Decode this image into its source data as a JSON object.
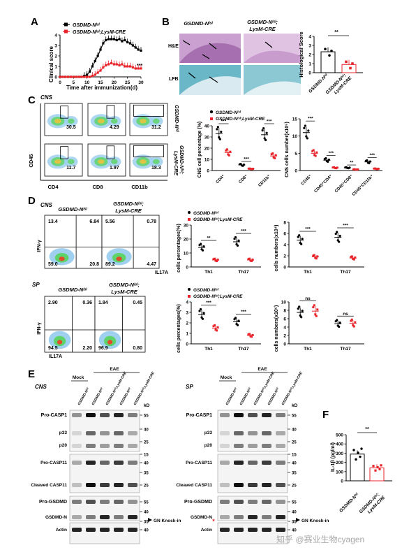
{
  "panels": {
    "A": {
      "letter": "A",
      "legend": [
        "GSDMD-Nˡˢˡ",
        "GSDMD-Nˡˢˡ;LysM-CRE"
      ],
      "ylabel": "Clinical score",
      "xlabel": "Time after immunization(d)",
      "sig": "***",
      "yticks": [
        "0",
        "1",
        "2",
        "3",
        "4"
      ],
      "xticks": [
        "0",
        "5",
        "10",
        "15",
        "20",
        "25",
        "30"
      ]
    },
    "B": {
      "letter": "B",
      "col1": "GSDMD-Nˡˢˡ",
      "col2": "GSDMD-Nˡˢˡ;",
      "col2b": "LysM-CRE",
      "row1": "H&E",
      "row2": "LFB",
      "ylabel": "Histological Score",
      "sig": "**",
      "xlabels": [
        "GSDMD-Nˡˢˡ",
        "GSDMD-Nˡˢˡ;",
        "LysM-CRE"
      ],
      "yticks": [
        "0",
        "1",
        "2",
        "3",
        "4"
      ]
    },
    "C": {
      "letter": "C",
      "tissue": "CNS",
      "vals_top": [
        "30.5",
        "4.29",
        "31.2"
      ],
      "vals_bot": [
        "11.7",
        "1.97",
        "18.3"
      ],
      "xaxes": [
        "CD4",
        "CD8",
        "CD11b"
      ],
      "yaxis": "CD45",
      "side1": "GSDMD-Nˡˢˡ",
      "side2": "GSDMD-Nˡˢˡ;",
      "side2b": "LysM-CRE",
      "legend": [
        "GSDMD-Nˡˢˡ",
        "GSDMD-Nˡˢˡ;LysM-CRE"
      ],
      "ylabel1": "CNS cell percentage (%)",
      "cats1": [
        "CD4⁺",
        "CD8⁺",
        "CD11b⁺"
      ],
      "yticks1": [
        "0",
        "10",
        "20",
        "30",
        "40"
      ],
      "ylabel2": "CNS cells number(x10⁵)",
      "cats2": [
        "CD45⁺",
        "CD45⁺CD4⁺",
        "CD45⁺CD8⁺",
        "CD45⁺CD11b⁺"
      ],
      "yticks2": [
        "0",
        "5",
        "10",
        "15"
      ],
      "sig1": [
        "***",
        "***",
        "***"
      ],
      "sig2": [
        "***",
        "***",
        "**",
        "***"
      ]
    },
    "D": {
      "letter": "D",
      "cns": "CNS",
      "sp": "SP",
      "h1": "GSDMD-Nˡˢˡ",
      "h2": "GSDMD-Nˡˢˡ;",
      "h2b": "LysM-CRE",
      "cns_q1": [
        "13.4",
        "6.84",
        "59.0",
        "20.8"
      ],
      "cns_q2": [
        "5.56",
        "0.78",
        "89.2",
        "4.47"
      ],
      "sp_q1": [
        "2.90",
        "0.36",
        "94.5",
        "2.20"
      ],
      "sp_q2": [
        "1.84",
        "0.45",
        "96.9",
        "0.80"
      ],
      "ifn": "IFN-γ",
      "il17": "IL17A",
      "legend": [
        "GSDMD-Nˡˢˡ",
        "GSDMD-Nˡˢˡ;LysM-CRE"
      ],
      "ylab_pct": "cells percentages(%)",
      "ylab_num_cns": "cells numbers(x10⁴)",
      "ylab_num_sp": "cells numbers(x10⁶)",
      "cats": [
        "Th1",
        "Th17"
      ],
      "yt_cns_pct": [
        "0",
        "10",
        "20",
        "30"
      ],
      "yt_cns_num": [
        "0",
        "2",
        "4",
        "6",
        "8"
      ],
      "yt_sp_pct": [
        "0",
        "1",
        "2",
        "3",
        "4"
      ],
      "yt_sp_num": [
        "0",
        "2",
        "4",
        "6",
        "8",
        "10"
      ],
      "sig_cns_pct": [
        "**",
        "***"
      ],
      "sig_cns_num": [
        "***",
        "***"
      ],
      "sig_sp_pct": [
        "***",
        "***"
      ],
      "sig_sp_num": [
        "ns",
        "ns"
      ]
    },
    "E": {
      "letter": "E",
      "cns": "CNS",
      "sp": "SP",
      "mock": "Mock",
      "eae": "EAE",
      "kd": "kD",
      "lanes": [
        "GSDMD-Nˡˢˡ",
        "GSDMD-Nˡˢˡ",
        "GSDMD-Nˡˢˡ;LysM-CRE",
        "GSDMD-Nˡˢˡ",
        "GSDMD-Nˡˢˡ;LysM-CRE"
      ],
      "rows": [
        "Pro-CASP1",
        "p33",
        "p20",
        "Pro-CASP11",
        "Cleaved CASP11",
        "Pro-GSDMD",
        "GSDMD-N",
        "Actin"
      ],
      "markers": [
        "55",
        "40",
        "25",
        "15",
        "40",
        "35",
        "25",
        "55",
        "40",
        "35",
        "40"
      ],
      "knock": "GN Knock-in",
      "star": "*"
    },
    "F": {
      "letter": "F",
      "ylabel": "IL-1β (pg/ml)",
      "sig": "**",
      "yticks": [
        "0",
        "100",
        "200",
        "300",
        "400",
        "500"
      ],
      "xlabels": [
        "GSDMD-Nˡˢˡ",
        "GSDMD-Nˡˢˡ;",
        "LysM-CRE"
      ]
    }
  },
  "watermark": "知乎 @赛业生物cyagen",
  "colors": {
    "wt": "#000000",
    "ko": "#e8252a"
  },
  "chart_data": [
    {
      "type": "line",
      "id": "A",
      "x": [
        0,
        1,
        2,
        3,
        4,
        5,
        6,
        7,
        8,
        9,
        10,
        11,
        12,
        13,
        14,
        15,
        16,
        17,
        18,
        19,
        20,
        21,
        22,
        23,
        24,
        25,
        26,
        27,
        28,
        29,
        30
      ],
      "series": [
        {
          "name": "GSDMD-Nˡˢˡ",
          "values": [
            0,
            0,
            0,
            0,
            0,
            0,
            0,
            0,
            0,
            0.1,
            0.2,
            0.5,
            1.0,
            1.5,
            2.0,
            2.6,
            3.2,
            3.5,
            3.6,
            3.6,
            3.6,
            3.5,
            3.6,
            3.4,
            3.5,
            3.3,
            3.2,
            3.0,
            2.8,
            2.6,
            2.5
          ]
        },
        {
          "name": "GSDMD-Nˡˢˡ;LysM-CRE",
          "values": [
            0,
            0,
            0,
            0,
            0,
            0,
            0,
            0,
            0,
            0,
            0,
            0,
            0.1,
            0.2,
            0.4,
            0.6,
            0.9,
            1.1,
            1.2,
            1.3,
            1.2,
            1.2,
            1.1,
            1.2,
            1.0,
            1.0,
            1.0,
            0.9,
            0.8,
            0.8,
            0.8
          ]
        }
      ],
      "ylim": [
        0,
        4
      ]
    },
    {
      "type": "bar",
      "id": "B",
      "categories": [
        "GSDMD-Nˡˢˡ",
        "GSDMD-Nˡˢˡ;LysM-CRE"
      ],
      "values": [
        2.3,
        0.9
      ],
      "ylim": [
        0,
        4
      ]
    },
    {
      "type": "scatter",
      "id": "C1",
      "categories": [
        "CD4⁺",
        "CD8⁺",
        "CD11b⁺"
      ],
      "series": [
        {
          "name": "GSDMD-Nˡˢˡ",
          "values": [
            33,
            5,
            32
          ]
        },
        {
          "name": "GSDMD-Nˡˢˡ;LysM-CRE",
          "values": [
            16,
            1.5,
            13
          ]
        }
      ],
      "ylim": [
        0,
        40
      ]
    },
    {
      "type": "scatter",
      "id": "C2",
      "categories": [
        "CD45⁺",
        "CD45⁺CD4⁺",
        "CD45⁺CD8⁺",
        "CD45⁺CD11b⁺"
      ],
      "series": [
        {
          "name": "GSDMD-Nˡˢˡ",
          "values": [
            11,
            3,
            0.8,
            2.5
          ]
        },
        {
          "name": "GSDMD-Nˡˢˡ;LysM-CRE",
          "values": [
            5,
            0.8,
            0.3,
            0.5
          ]
        }
      ],
      "ylim": [
        0,
        15
      ]
    },
    {
      "type": "scatter",
      "id": "D_cns_pct",
      "categories": [
        "Th1",
        "Th17"
      ],
      "series": [
        {
          "name": "GSDMD-Nˡˢˡ",
          "values": [
            14,
            18
          ]
        },
        {
          "name": "GSDMD-Nˡˢˡ;LysM-CRE",
          "values": [
            5,
            5
          ]
        }
      ],
      "ylim": [
        0,
        30
      ]
    },
    {
      "type": "scatter",
      "id": "D_cns_num",
      "categories": [
        "Th1",
        "Th17"
      ],
      "series": [
        {
          "name": "GSDMD-Nˡˢˡ",
          "values": [
            4.8,
            5.3
          ]
        },
        {
          "name": "GSDMD-Nˡˢˡ;LysM-CRE",
          "values": [
            1.8,
            1.6
          ]
        }
      ],
      "ylim": [
        0,
        8
      ]
    },
    {
      "type": "scatter",
      "id": "D_sp_pct",
      "categories": [
        "Th1",
        "Th17"
      ],
      "series": [
        {
          "name": "GSDMD-Nˡˢˡ",
          "values": [
            2.8,
            2.1
          ]
        },
        {
          "name": "GSDMD-Nˡˢˡ;LysM-CRE",
          "values": [
            1.5,
            0.8
          ]
        }
      ],
      "ylim": [
        0,
        4
      ]
    },
    {
      "type": "scatter",
      "id": "D_sp_num",
      "categories": [
        "Th1",
        "Th17"
      ],
      "series": [
        {
          "name": "GSDMD-Nˡˢˡ",
          "values": [
            7.5,
            4.8
          ]
        },
        {
          "name": "GSDMD-Nˡˢˡ;LysM-CRE",
          "values": [
            7.8,
            4.9
          ]
        }
      ],
      "ylim": [
        0,
        10
      ]
    },
    {
      "type": "bar",
      "id": "F",
      "categories": [
        "GSDMD-Nˡˢˡ",
        "GSDMD-Nˡˢˡ;LysM-CRE"
      ],
      "values": [
        290,
        140
      ],
      "ylim": [
        0,
        500
      ]
    }
  ]
}
